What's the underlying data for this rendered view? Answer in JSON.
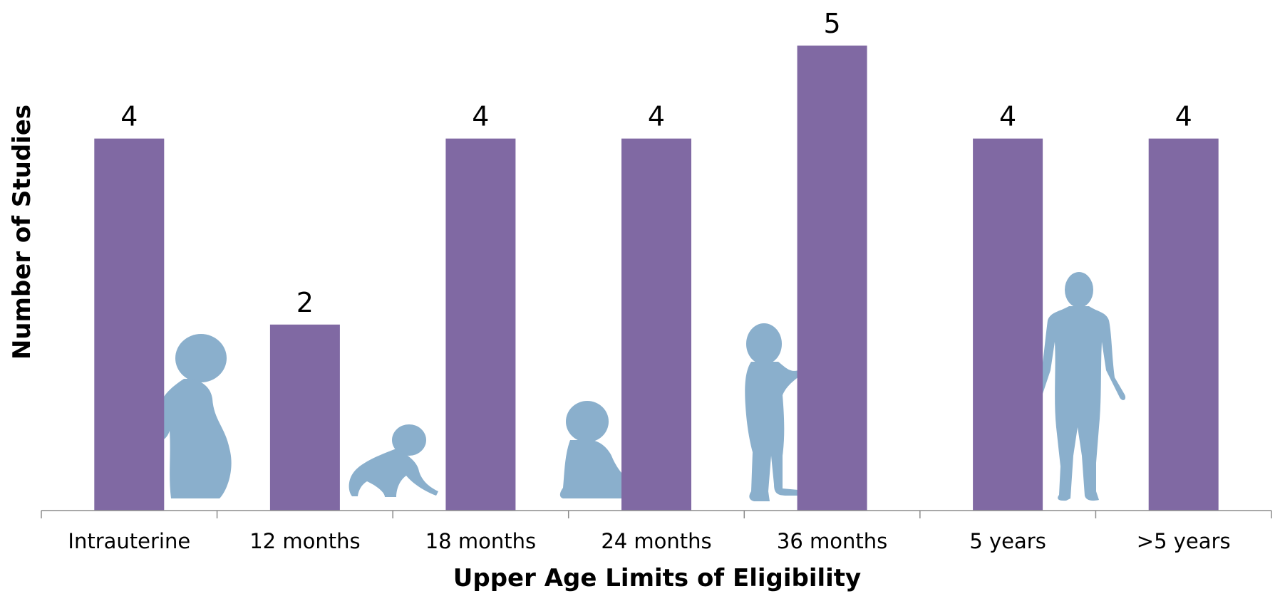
{
  "chart_data": {
    "type": "bar",
    "categories": [
      "Intrauterine",
      "12 months",
      "18 months",
      "24 months",
      "36 months",
      "5 years",
      ">5 years"
    ],
    "values": [
      4,
      2,
      4,
      4,
      5,
      4,
      4
    ],
    "data_labels": [
      "4",
      "2",
      "4",
      "4",
      "5",
      "4",
      "4"
    ],
    "title": "",
    "xlabel": "Upper Age Limits of Eligibility",
    "ylabel": "Number of Studies",
    "ylim": [
      0,
      5
    ],
    "grid": false,
    "legend": "none",
    "colors": {
      "bar": "#8069a3",
      "silhouette": "#8aafcc",
      "axis": "#8c8c8c"
    },
    "decorations": [
      {
        "icon": "pregnant-woman-silhouette-icon",
        "category": "Intrauterine"
      },
      {
        "icon": "crawling-baby-silhouette-icon",
        "category": "12 months"
      },
      {
        "icon": "sitting-baby-silhouette-icon",
        "category": "24 months"
      },
      {
        "icon": "standing-toddler-silhouette-icon",
        "category": "36 months"
      },
      {
        "icon": "adult-human-silhouette-icon",
        "category": "5 years"
      }
    ]
  }
}
